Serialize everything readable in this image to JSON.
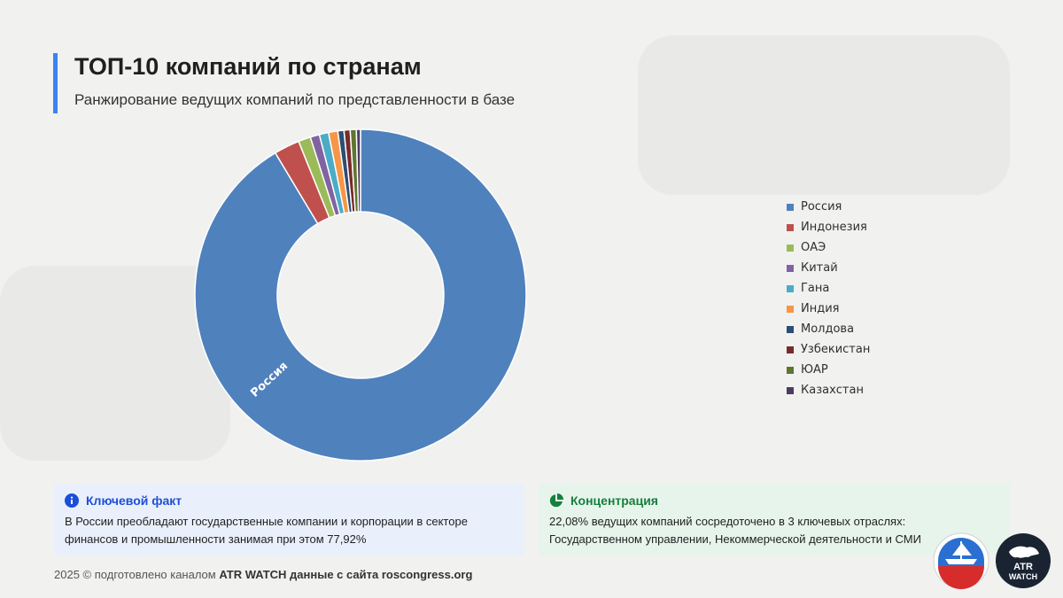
{
  "title": "ТОП-10 компаний по странам",
  "subtitle": "Ранжирование ведущих компаний по представленности в базе",
  "chart_data": {
    "type": "pie",
    "donut": true,
    "categories": [
      "Россия",
      "Индонезия",
      "ОАЭ",
      "Китай",
      "Гана",
      "Индия",
      "Молдова",
      "Узбекистан",
      "ЮАР",
      "Казахстан"
    ],
    "values": [
      91.4,
      2.5,
      1.2,
      0.9,
      0.9,
      0.9,
      0.6,
      0.6,
      0.6,
      0.4
    ],
    "colors": [
      "#4f81bd",
      "#c0504d",
      "#9bbb59",
      "#8064a2",
      "#4bacc6",
      "#f79646",
      "#2c4d75",
      "#772c2a",
      "#5f7530",
      "#4d3b62"
    ],
    "slice_labels": [
      "Россия",
      "",
      "",
      "",
      "",
      "",
      "",
      "",
      "",
      ""
    ],
    "legend_position": "right"
  },
  "cards": {
    "fact": {
      "icon": "info-icon",
      "title": "Ключевой факт",
      "line1": "В России преобладают государственные компании и корпорации в секторе",
      "line2": "финансов и промышленности занимая при этом 77,92%"
    },
    "concentration": {
      "icon": "pie-chart-icon",
      "title": "Концентрация",
      "line1": "22,08% ведущих компаний сосредоточено в 3 ключевых отраслях:",
      "line2": "Государственном управлении, Некоммерческой деятельности и СМИ"
    }
  },
  "footer": {
    "year": "2025",
    "copyright": "©",
    "prefix": "подготовлено каналом",
    "bold_text": "ATR WATCH данные с сайта roscongress.org"
  },
  "logos": {
    "first": "roscongress-ship-logo",
    "second_line1": "ATR",
    "second_line2": "WATCH"
  }
}
